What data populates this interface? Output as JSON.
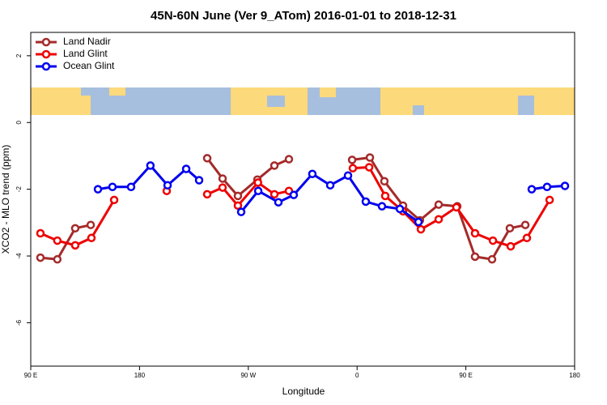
{
  "chart_data": {
    "type": "line",
    "title": "45N-60N June (Ver 9_ATom)   2016-01-01 to 2018-12-31",
    "x_label": "Longitude",
    "y_label": "XCO2 - MLO trend (ppm)",
    "xlim": [
      90,
      540
    ],
    "xticks": [
      {
        "value": 90,
        "label": "90 E"
      },
      180,
      {
        "value": 270,
        "label": "90 W"
      },
      {
        "value": 360,
        "label": "0"
      },
      {
        "value": 450,
        "label": "90 E"
      },
      {
        "value": 540,
        "label": "180"
      }
    ],
    "ylim": [
      -7.3,
      2.7
    ],
    "yticks": [
      -6,
      -4,
      -2,
      0,
      2
    ],
    "legend": "top-left",
    "series": [
      {
        "name": "Land Nadir",
        "color": "#a52a2a",
        "x": [
          98,
          112,
          126.8,
          139.6,
          null,
          236,
          248.7,
          261.4,
          277.5,
          291.6,
          303.6,
          null,
          355.9,
          370.6,
          382.6,
          398,
          412,
          427.5,
          442.9,
          457.6,
          471.7,
          486.4,
          499.2
        ],
        "values": [
          -4.05,
          -4.1,
          -3.17,
          -3.07,
          null,
          -1.07,
          -1.68,
          -2.2,
          -1.71,
          -1.29,
          -1.1,
          null,
          -1.12,
          -1.05,
          -1.76,
          -2.49,
          -2.93,
          -2.46,
          -2.51,
          -4.02,
          -4.1,
          -3.17,
          -3.07
        ]
      },
      {
        "name": "Land Glint",
        "color": "#ee0000",
        "x": [
          98,
          112,
          126.8,
          140.2,
          159,
          null,
          202.5,
          null,
          236,
          248.7,
          261.4,
          278,
          291.6,
          303.6,
          null,
          356.5,
          370,
          383.3,
          398,
          412.8,
          427.5,
          442.2,
          457.6,
          472.4,
          487.1,
          500.5,
          519.3
        ],
        "values": [
          -3.32,
          -3.54,
          -3.68,
          -3.46,
          -2.32,
          null,
          -2.05,
          null,
          -2.15,
          -1.95,
          -2.49,
          -1.8,
          -2.15,
          -2.05,
          null,
          -1.37,
          -1.34,
          -2.2,
          -2.66,
          -3.2,
          -2.9,
          -2.54,
          -3.32,
          -3.54,
          -3.71,
          -3.46,
          -2.32
        ]
      },
      {
        "name": "Ocean Glint",
        "color": "#0000ee",
        "x": [
          145.6,
          157.6,
          173,
          189,
          203.2,
          218.6,
          229.3,
          null,
          264.1,
          278.2,
          294.9,
          307.6,
          323,
          337.8,
          352.5,
          367.2,
          380.6,
          395.4,
          410.8,
          null,
          504.5,
          517.2,
          532
        ],
        "values": [
          -2.0,
          -1.93,
          -1.93,
          -1.29,
          -1.88,
          -1.39,
          -1.73,
          null,
          -2.68,
          -2.05,
          -2.39,
          -2.17,
          -1.54,
          -1.88,
          -1.59,
          -2.37,
          -2.51,
          -2.59,
          -2.98,
          null,
          -2.0,
          -1.93,
          -1.9
        ]
      }
    ]
  }
}
